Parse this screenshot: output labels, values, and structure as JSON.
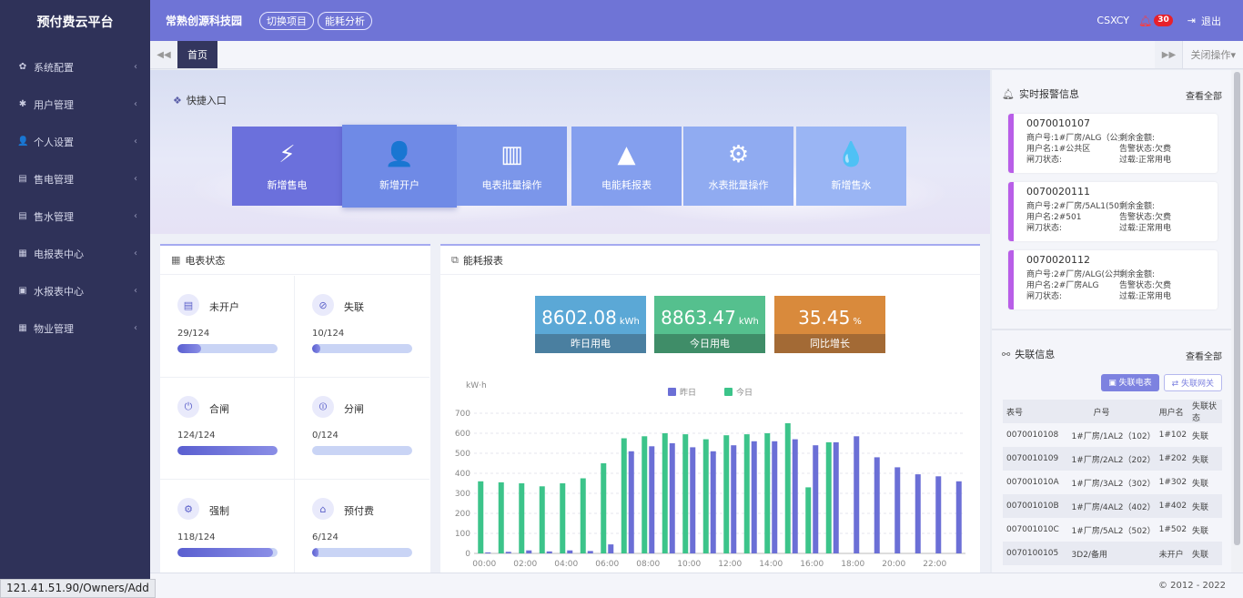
{
  "sidebar": {
    "brand": "预付费云平台",
    "items": [
      {
        "label": "系统配置",
        "icon": "gear-icon",
        "glyph": "✿"
      },
      {
        "label": "用户管理",
        "icon": "asterisk-icon",
        "glyph": "✱"
      },
      {
        "label": "个人设置",
        "icon": "user-icon",
        "glyph": "👤"
      },
      {
        "label": "售电管理",
        "icon": "card-icon",
        "glyph": "▤"
      },
      {
        "label": "售水管理",
        "icon": "card-icon",
        "glyph": "▤"
      },
      {
        "label": "电报表中心",
        "icon": "grid-icon",
        "glyph": "▦"
      },
      {
        "label": "水报表中心",
        "icon": "monitor-icon",
        "glyph": "▣"
      },
      {
        "label": "物业管理",
        "icon": "calendar-icon",
        "glyph": "▦"
      }
    ]
  },
  "header": {
    "org": "常熟创源科技园",
    "switch_project": "切换项目",
    "energy_analysis": "能耗分析",
    "username": "CSXCY",
    "alarm_count": "30",
    "logout": "退出"
  },
  "tabs": {
    "home": "首页",
    "close_ops": "关闭操作"
  },
  "quick": {
    "title": "快捷入口",
    "tiles": [
      {
        "label": "新增售电",
        "icon": "sell-electricity-icon",
        "glyph": "⚡",
        "color": "#6b70dc"
      },
      {
        "label": "新增开户",
        "icon": "add-user-icon",
        "glyph": "👤",
        "color": "#6f8ae6"
      },
      {
        "label": "电表批量操作",
        "icon": "meter-batch-icon",
        "glyph": "▥",
        "color": "#7b96ea"
      },
      {
        "label": "电能耗报表",
        "icon": "report-chart-icon",
        "glyph": "▲",
        "color": "#849fee"
      },
      {
        "label": "水表批量操作",
        "icon": "water-meter-icon",
        "glyph": "⚙",
        "color": "#90abf1"
      },
      {
        "label": "新增售水",
        "icon": "water-drop-icon",
        "glyph": "💧",
        "color": "#9ab5f4"
      }
    ]
  },
  "meter_status": {
    "title": "电表状态",
    "items": [
      {
        "name": "未开户",
        "count": "29/124",
        "fraction": 0.234,
        "icon": "meter-card-icon",
        "glyph": "▤"
      },
      {
        "name": "失联",
        "count": "10/124",
        "fraction": 0.081,
        "icon": "disconnect-icon",
        "glyph": "⊘"
      },
      {
        "name": "合闸",
        "count": "124/124",
        "fraction": 1.0,
        "icon": "switch-on-icon",
        "glyph": "⏻"
      },
      {
        "name": "分闸",
        "count": "0/124",
        "fraction": 0.0,
        "icon": "switch-off-icon",
        "glyph": "⏼"
      },
      {
        "name": "强制",
        "count": "118/124",
        "fraction": 0.952,
        "icon": "force-icon",
        "glyph": "⚙"
      },
      {
        "name": "预付费",
        "count": "6/124",
        "fraction": 0.048,
        "icon": "prepay-icon",
        "glyph": "⌂"
      }
    ]
  },
  "energy": {
    "title": "能耗报表",
    "stats": [
      {
        "value": "8602.08",
        "unit": "kWh",
        "caption": "昨日用电",
        "top": "#5ba8d6",
        "bottom": "#4a7fa0"
      },
      {
        "value": "8863.47",
        "unit": "kWh",
        "caption": "今日用电",
        "top": "#55c08e",
        "bottom": "#3f8d68"
      },
      {
        "value": "35.45",
        "unit": "%",
        "caption": "同比增长",
        "top": "#d98a3c",
        "bottom": "#a36a35"
      }
    ]
  },
  "chart_data": {
    "type": "bar",
    "ylabel": "kW·h",
    "ylim": [
      0,
      700
    ],
    "yticks": [
      0,
      100,
      200,
      300,
      400,
      500,
      600,
      700
    ],
    "grid": true,
    "legend_position": "top-center",
    "categories": [
      "00:00",
      "01:00",
      "02:00",
      "03:00",
      "04:00",
      "05:00",
      "06:00",
      "07:00",
      "08:00",
      "09:00",
      "10:00",
      "11:00",
      "12:00",
      "13:00",
      "14:00",
      "15:00",
      "16:00",
      "17:00",
      "18:00",
      "19:00",
      "20:00",
      "21:00",
      "22:00",
      "23:00"
    ],
    "xtick_labels": [
      "00:00",
      "02:00",
      "04:00",
      "06:00",
      "08:00",
      "10:00",
      "12:00",
      "14:00",
      "16:00",
      "18:00",
      "20:00",
      "22:00"
    ],
    "series": [
      {
        "name": "昨日",
        "color": "#6b6fd6",
        "values": [
          5,
          8,
          15,
          10,
          15,
          12,
          45,
          510,
          535,
          550,
          530,
          510,
          540,
          560,
          560,
          570,
          540,
          555,
          585,
          480,
          430,
          395,
          385,
          360
        ]
      },
      {
        "name": "今日",
        "color": "#3cc48a",
        "values": [
          360,
          355,
          350,
          335,
          350,
          375,
          450,
          575,
          585,
          600,
          595,
          570,
          590,
          595,
          600,
          650,
          330,
          555,
          null,
          null,
          null,
          null,
          null,
          null
        ]
      }
    ]
  },
  "alarms": {
    "title": "实时报警信息",
    "view_all": "查看全部",
    "items": [
      {
        "id": "0070010107",
        "merchant": "商户号:1#厂房/ALG（公共区",
        "balance": "剩余金额:",
        "username": "用户名:1#公共区",
        "alarm_status": "告警状态:欠费",
        "switch_status": "闸刀状态:",
        "load_status": "过载:正常用电"
      },
      {
        "id": "0070020111",
        "merchant": "商户号:2#厂房/5AL1(501",
        "balance": "剩余金额:",
        "username": "用户名:2#501",
        "alarm_status": "告警状态:欠费",
        "switch_status": "闸刀状态:",
        "load_status": "过载:正常用电"
      },
      {
        "id": "0070020112",
        "merchant": "商户号:2#厂房/ALG(公共",
        "balance": "剩余金额:",
        "username": "用户名:2#厂房ALG",
        "alarm_status": "告警状态:欠费",
        "switch_status": "闸刀状态:",
        "load_status": "过载:正常用电"
      }
    ]
  },
  "offline": {
    "title": "失联信息",
    "view_all": "查看全部",
    "btn_meter": "失联电表",
    "btn_gateway": "失联网关",
    "columns": [
      "表号",
      "户号",
      "用户名",
      "失联状态"
    ],
    "rows": [
      [
        "0070010108",
        "1#厂房/1AL2（102）",
        "1#102",
        "失联"
      ],
      [
        "0070010109",
        "1#厂房/2AL2（202）",
        "1#202",
        "失联"
      ],
      [
        "007001010A",
        "1#厂房/3AL2（302）",
        "1#302",
        "失联"
      ],
      [
        "007001010B",
        "1#厂房/4AL2（402）",
        "1#402",
        "失联"
      ],
      [
        "007001010C",
        "1#厂房/5AL2（502）",
        "1#502",
        "失联"
      ],
      [
        "0070100105",
        "3D2/备用",
        "未开户",
        "失联"
      ]
    ]
  },
  "footer": {
    "copyright": "© 2012 - 2022",
    "status_url": "121.41.51.90/Owners/Add"
  }
}
